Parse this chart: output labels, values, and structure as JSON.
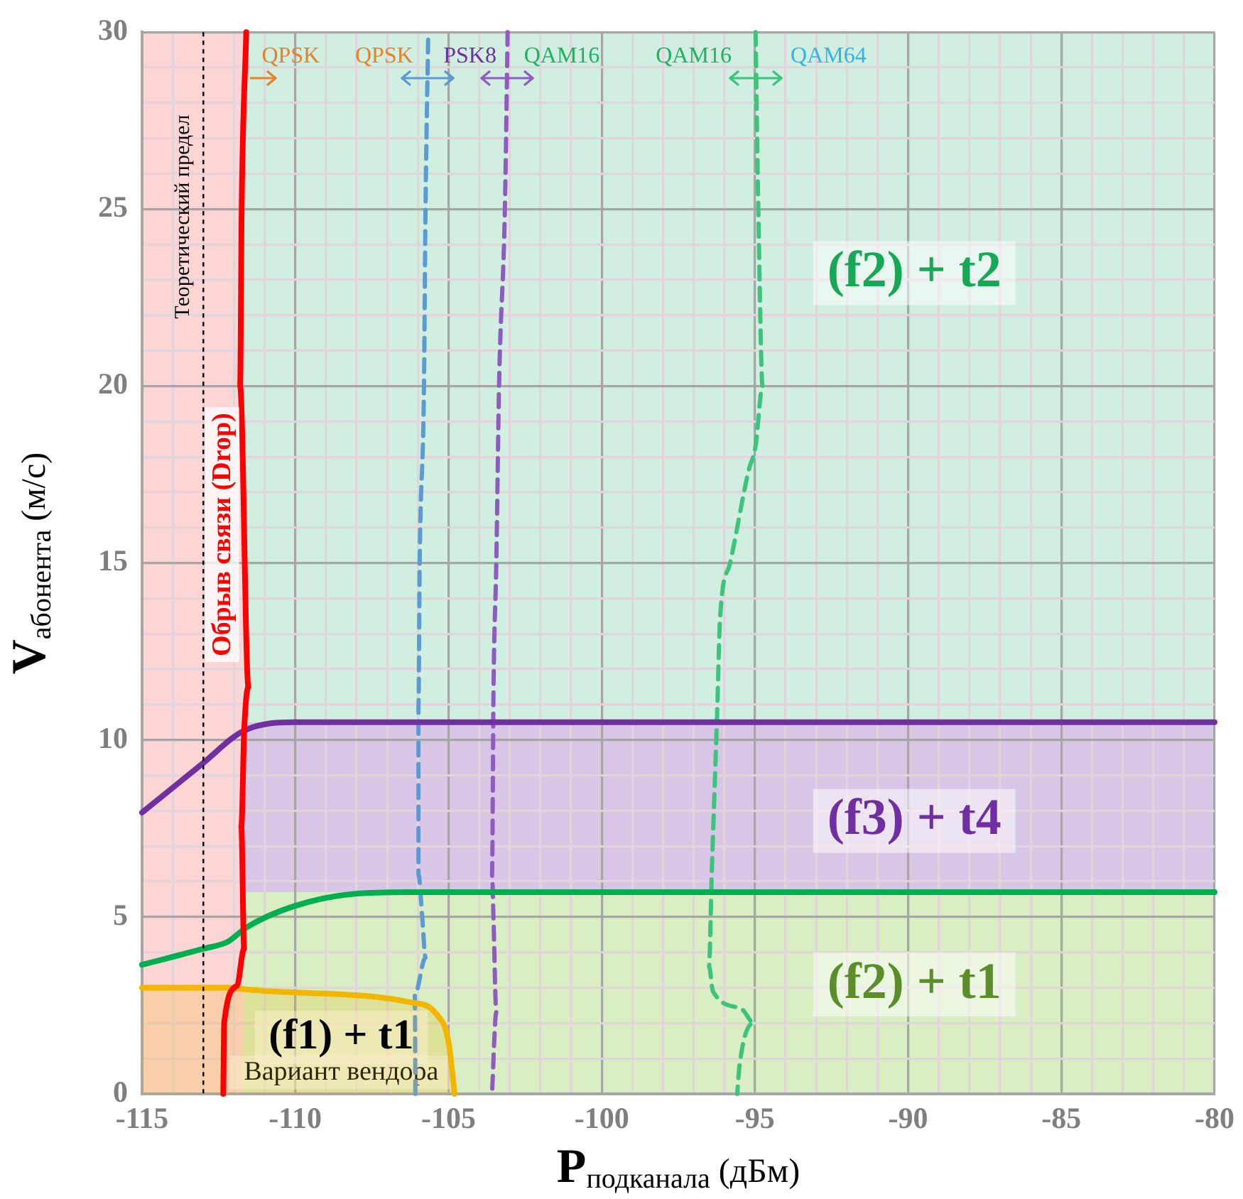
{
  "chart_data": {
    "type": "line",
    "xlabel": "P$_{подканала}$ (дБм)",
    "ylabel": "V$_{абонента}$ (м/с)",
    "xlim": [
      -115,
      -80
    ],
    "ylim": [
      0,
      30
    ],
    "xticks": [
      -115,
      {
        "value": -114,
        "label": null
      },
      {
        "value": -113,
        "label": null
      },
      {
        "value": -112,
        "label": null
      },
      {
        "value": -111,
        "label": null
      },
      -110,
      {
        "value": -109,
        "label": null
      },
      {
        "value": -108,
        "label": null
      },
      {
        "value": -107,
        "label": null
      },
      {
        "value": -106,
        "label": null
      },
      -105,
      {
        "value": -104,
        "label": null
      },
      {
        "value": -103,
        "label": null
      },
      {
        "value": -102,
        "label": null
      },
      {
        "value": -101,
        "label": null
      },
      -100,
      {
        "value": -99,
        "label": null
      },
      {
        "value": -98,
        "label": null
      },
      {
        "value": -97,
        "label": null
      },
      {
        "value": -96,
        "label": null
      },
      -95,
      {
        "value": -94,
        "label": null
      },
      {
        "value": -93,
        "label": null
      },
      {
        "value": -92,
        "label": null
      },
      {
        "value": -91,
        "label": null
      },
      -90,
      {
        "value": -89,
        "label": null
      },
      {
        "value": -88,
        "label": null
      },
      {
        "value": -87,
        "label": null
      },
      {
        "value": -86,
        "label": null
      },
      -85,
      {
        "value": -84,
        "label": null
      },
      {
        "value": -83,
        "label": null
      },
      {
        "value": -82,
        "label": null
      },
      {
        "value": -81,
        "label": null
      },
      -80
    ],
    "yticks": [
      0,
      {
        "value": 1,
        "label": null
      },
      {
        "value": 2,
        "label": null
      },
      {
        "value": 3,
        "label": null
      },
      {
        "value": 4,
        "label": null
      },
      5,
      {
        "value": 6,
        "label": null
      },
      {
        "value": 7,
        "label": null
      },
      {
        "value": 8,
        "label": null
      },
      {
        "value": 9,
        "label": null
      },
      10,
      {
        "value": 11,
        "label": null
      },
      {
        "value": 12,
        "label": null
      },
      {
        "value": 13,
        "label": null
      },
      {
        "value": 14,
        "label": null
      },
      15,
      {
        "value": 16,
        "label": null
      },
      {
        "value": 17,
        "label": null
      },
      {
        "value": 18,
        "label": null
      },
      {
        "value": 19,
        "label": null
      },
      20,
      {
        "value": 21,
        "label": null
      },
      {
        "value": 22,
        "label": null
      },
      {
        "value": 23,
        "label": null
      },
      {
        "value": 24,
        "label": null
      },
      25,
      {
        "value": 26,
        "label": null
      },
      {
        "value": 27,
        "label": null
      },
      {
        "value": 28,
        "label": null
      },
      {
        "value": 29,
        "label": null
      },
      30
    ],
    "grid": true,
    "legend": false,
    "marker": "none",
    "bands": [
      {
        "axis": "y",
        "from": 10.5,
        "to": 30,
        "color": "#d0efe0"
      },
      {
        "axis": "y",
        "from": 5.7,
        "to": 10.5,
        "color": "#d9c6e6"
      },
      {
        "axis": "y",
        "from": 0,
        "to": 5.7,
        "color": "#d9eec2"
      },
      {
        "axis": "x",
        "from": -115,
        "to": -111.7,
        "color": "#fdd5d5"
      }
    ],
    "ref_lines": [
      {
        "axis": "x",
        "value": -113,
        "label": "Теоретический предел",
        "color": "#000000",
        "line_style": "dotted"
      }
    ],
    "series": [
      {
        "type": "line",
        "name": "Обрыв связи (Drop)",
        "color": "#ff0000",
        "x": [
          -111.6,
          -111.75,
          -111.8,
          -111.53,
          -111.67,
          -111.76,
          -111.67,
          -111.9,
          -112.32,
          -112.35
        ],
        "values": [
          30,
          25,
          20,
          11.5,
          10.2,
          7.55,
          4.1,
          3.06,
          2.0,
          0
        ]
      },
      {
        "type": "line",
        "color": "#7030a0",
        "x": [
          -115,
          -113,
          -111.7,
          -110.05,
          -108,
          -80
        ],
        "values": [
          7.95,
          9.35,
          10.25,
          10.5,
          10.5,
          10.5
        ]
      },
      {
        "type": "line",
        "color": "#00b050",
        "x": [
          -115,
          -113,
          -112.2,
          -111.6,
          -110.05,
          -108.1,
          -106.2,
          -80
        ],
        "values": [
          3.65,
          4.1,
          4.3,
          4.7,
          5.3,
          5.65,
          5.7,
          5.7
        ]
      },
      {
        "type": "area",
        "color": "#f2b600",
        "x": [
          -115,
          -112,
          -111.9,
          -106.2,
          -105.4,
          -105.0,
          -104.8
        ],
        "values": [
          3.0,
          3.0,
          2.98,
          2.58,
          2.26,
          1.47,
          0
        ]
      },
      {
        "type": "line",
        "color": "#5b9bd5",
        "line_style": "dashed",
        "x": [
          -106.08,
          -106.1,
          -105.75,
          -105.85,
          -105.98,
          -105.98,
          -105.94,
          -105.8,
          -105.75,
          -105.66
        ],
        "values": [
          0,
          2.8,
          3.85,
          4.9,
          6.2,
          11,
          15,
          20,
          25,
          30
        ]
      },
      {
        "type": "line",
        "color": "#8e5cc0",
        "line_style": "dashed",
        "x": [
          -103.07,
          -103.16,
          -103.35,
          -103.44,
          -103.53,
          -103.58,
          -103.53,
          -103.44,
          -103.58
        ],
        "values": [
          30,
          25,
          20,
          15,
          11.5,
          6.2,
          4.9,
          2.3,
          0
        ]
      },
      {
        "type": "line",
        "color": "#3cc47c",
        "line_style": "dashed",
        "x": [
          -94.98,
          -94.89,
          -94.75,
          -94.98,
          -95.21,
          -95.81,
          -96.14,
          -96.23,
          -96.41,
          -96.5,
          -96.37,
          -95.44,
          -95.03,
          -95.49,
          -95.58
        ],
        "values": [
          30,
          25,
          20,
          18.3,
          17.6,
          15,
          13.4,
          10.85,
          6.2,
          3.6,
          2.9,
          2.4,
          2.0,
          0.9,
          0
        ]
      }
    ],
    "annotations": [
      "QPSK",
      "QPSK",
      "PSK8",
      "QAM16",
      "QAM16",
      "QAM64",
      "(f2) + t2",
      "(f3) + t4",
      "(f2) + t1",
      "(f1) + t1",
      "Вариант вендора"
    ]
  }
}
